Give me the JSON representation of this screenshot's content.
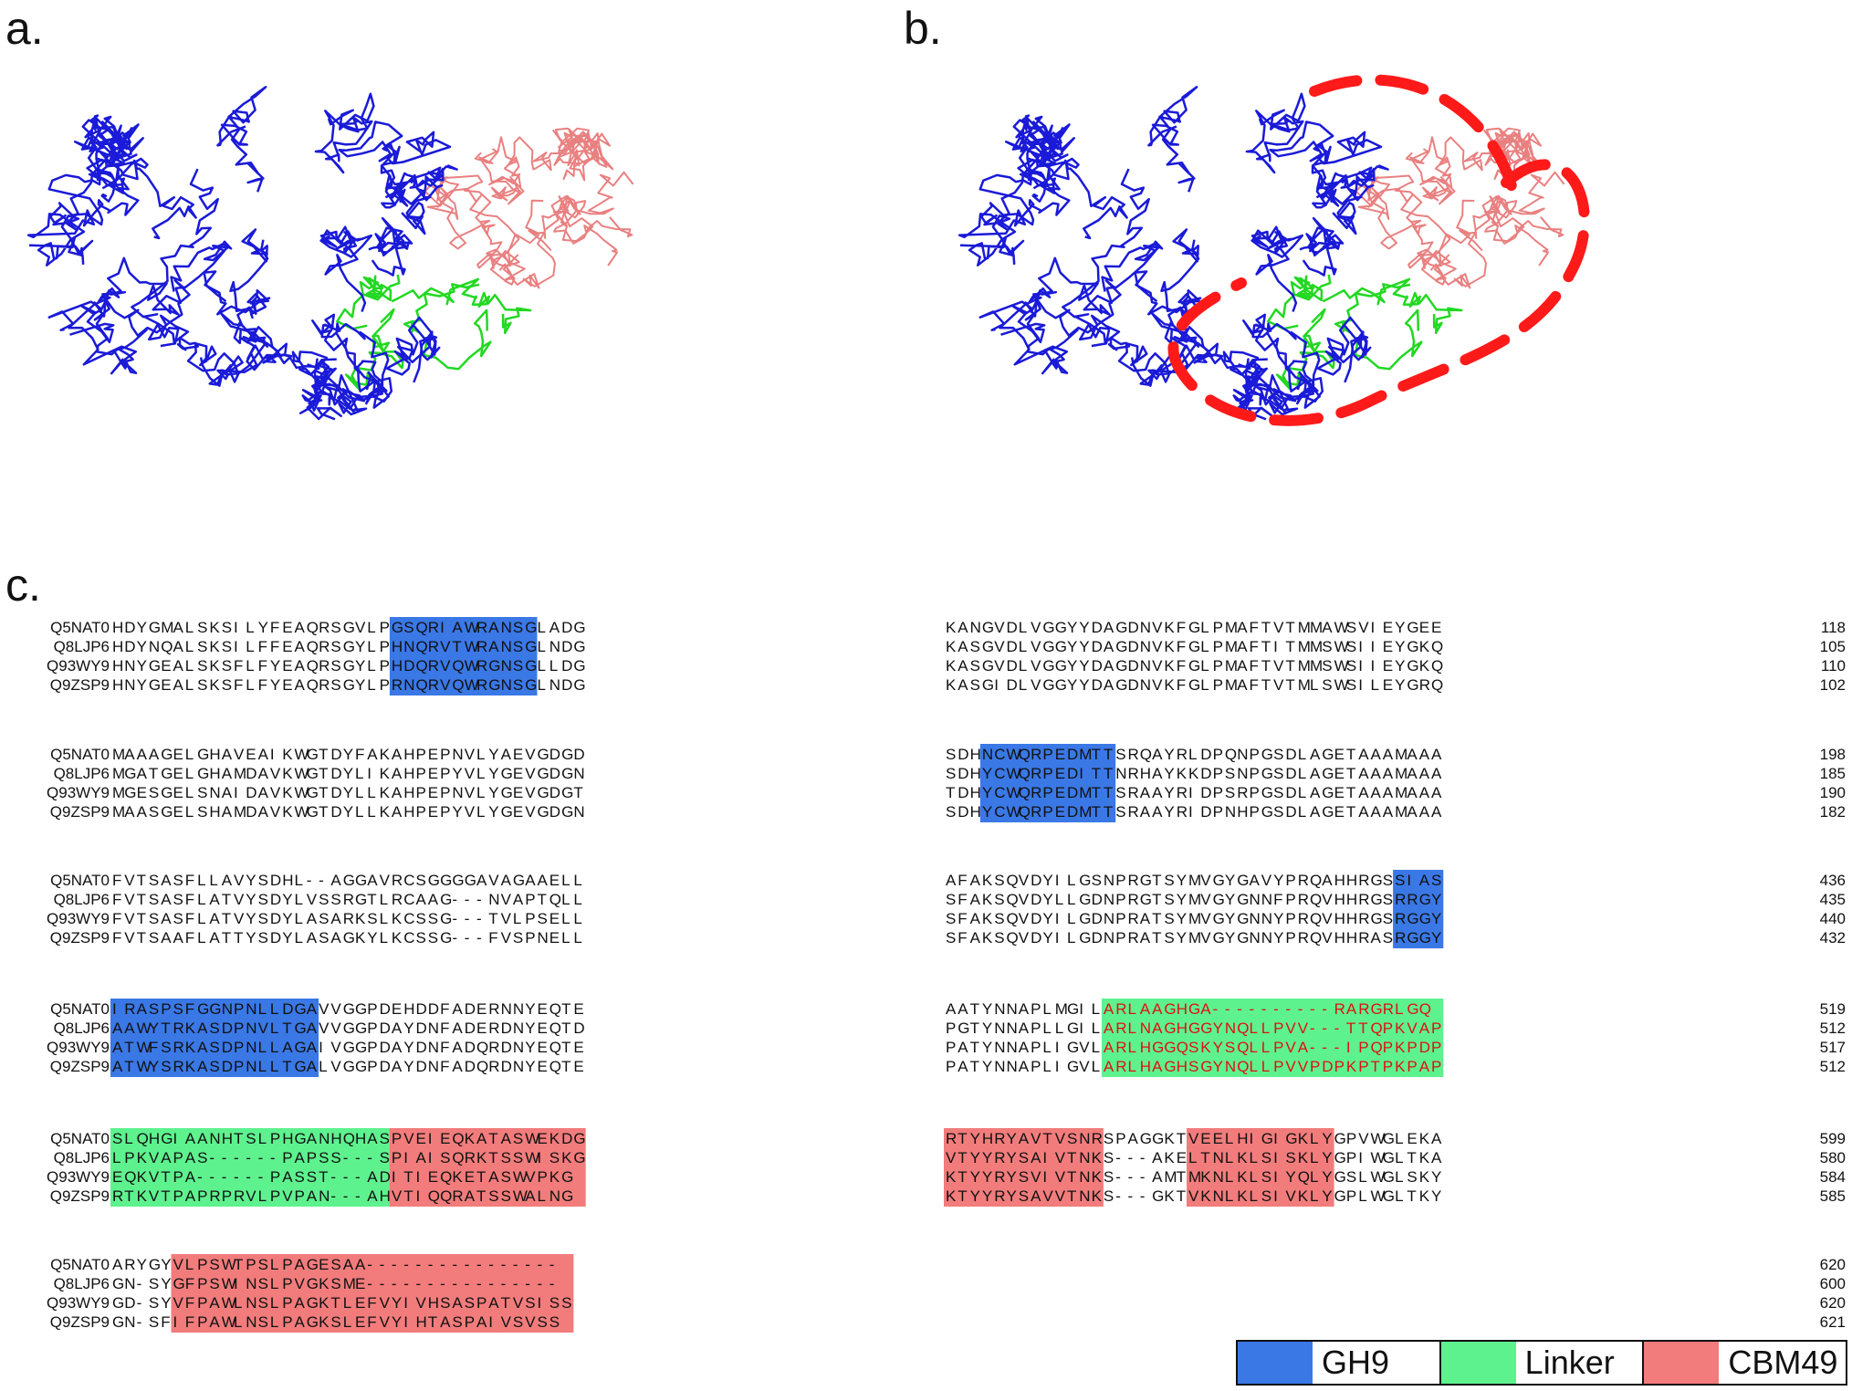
{
  "panels": {
    "a": "a.",
    "b": "b.",
    "c": "c."
  },
  "colors": {
    "gh9": "#3a78e6",
    "linker": "#5ef28f",
    "cbm49": "#f27c7c",
    "cbm49_text": "#e01010",
    "gh9_chain": "#1a1ad8",
    "linker_chain": "#22d822",
    "cbm49_chain": "#e98080",
    "annotation": "#ff1a1a"
  },
  "legend": [
    {
      "label": "GH9",
      "color": "#3a78e6"
    },
    {
      "label": "Linker",
      "color": "#5ef28f"
    },
    {
      "label": "CBM49",
      "color": "#f27c7c"
    }
  ],
  "alignment": {
    "names": [
      "Q5NAT0",
      "Q8LJP6",
      "Q93WY9",
      "Q9ZSP9"
    ],
    "blocks": [
      {
        "rows": [
          {
            "left": "HDYGMALSKSILYFEAQRSGVLPGSQRIAWRANSGLADG",
            "right": "KANGVDLVGGYYDAGDNVKFGLPMAFTVTMMAWSVIEYGEE",
            "num": "118"
          },
          {
            "left": "HDYNQALSKSILFFEAQRSGYLPHNQRVTWRANSGLNDG",
            "right": "KASGVDLVGGYYDAGDNVKFGLPMAFTITMMSWSIIEYGKQ",
            "num": "105"
          },
          {
            "left": "HNYGEALSKSFLFYEAQRSGYLPHDQRVQWRGNSGLLDG",
            "right": "KASGVDLVGGYYDAGDNVKFGLPMAFTVTMMSWSIIEYGKQ",
            "num": "110"
          },
          {
            "left": "HNYGEALSKSFLFYEAQRSGYLPRNQRVQWRGNSGLNDG",
            "right": "KASGIDLVGGYYDAGDNVKFGLPMAFTVTMLSWSILEYGRQ",
            "num": "102"
          }
        ],
        "hl": [
          {
            "side": "left",
            "s": 23,
            "e": 34,
            "c": "gh9"
          }
        ]
      },
      {
        "rows": [
          {
            "left": "MAAAGELGHAVEAIKWGTDYFAKAHPEPNVLYAEVGDGD",
            "right": "SDHNCWQRPEDMTTSRQAYRLDPQNPGSDLAGETAAAMAAA",
            "num": "198"
          },
          {
            "left": "MGATGELGHAMDAVKWGTDYLIKAHPEPYVLYGEVGDGN",
            "right": "SDHYCWQRPEDITTNRHAYKKDPSNPGSDLAGETAAAMAAA",
            "num": "185"
          },
          {
            "left": "MGESGELSNAIDAVKWGTDYLLKAHPEPNVLYGEVGDGT",
            "right": "TDHYCWQRPEDMTTSRAAYRIDPSRPGSDLAGETAAAMAAA",
            "num": "190"
          },
          {
            "left": "MAASGELSHAMDAVKWGTDYLLKAHPEPYVLYGEVGDGN",
            "right": "SDHYCWQRPEDMTTSRAAYRIDPNHPGSDLAGETAAAMAAA",
            "num": "182"
          }
        ],
        "hl": [
          {
            "side": "right",
            "s": 3,
            "e": 13,
            "c": "gh9"
          }
        ]
      },
      {
        "rows": [
          {
            "left": "FVTSASFLLAVYSDHL--AGGAVRCSGGGGAVAGAAELL",
            "right": "AFAKSQVDYILGSNPRGTSYMVGYGAVYPRQAHHRGSSIAS",
            "num": "436"
          },
          {
            "left": "FVTSASFLATVYSDYLVSSRGTLRCAAG---NVAPTQLL",
            "right": "SFAKSQVDYLLGDNPRGTSYMVGYGNNFPRQVHHRGSRRGY",
            "num": "435"
          },
          {
            "left": "FVTSASFLATVYSDYLASARKSLKCSSG---TVLPSELL",
            "right": "SFAKSQVDYILGDNPRATSYMVGYGNNYPRQVHHRGSRGGY",
            "num": "440"
          },
          {
            "left": "FVTSAAFLATTYSDYLASAGKYLKCSSG---FVSPNELL",
            "right": "SFAKSQVDYILGDNPRATSYMVGYGNNYPRQVHHRASRGGY",
            "num": "432"
          }
        ],
        "hl": [
          {
            "side": "right",
            "s": 37,
            "e": 40,
            "c": "gh9"
          }
        ]
      },
      {
        "rows": [
          {
            "left": "IRASPSFGGNPNLLDGAVVGGPDEHDDFADERNNYEQTE",
            "right": "AATYNNAPLMGILARLAAGHGA----------RARGRLGQ",
            "num": "519"
          },
          {
            "left": "AAWYTRKASDPNVLTGAVVGGPDAYDNFADERDNYEQTD",
            "right": "PGTYNNAPLLGILARLNAGHGGYNQLLPVV---TTQPKVAP",
            "num": "512"
          },
          {
            "left": "ATWFSRKASDPNLLAGAIVGGPDAYDNFADQRDNYEQTE",
            "right": "PATYNNAPLIGVLARLHGGQSKYSQLLPVA---IPQPKPDP",
            "num": "517"
          },
          {
            "left": "ATWYSRKASDPNLLTGALVGGPDAYDNFADQRDNYEQTE",
            "right": "PATYNNAPLIGVLARLHAGHSGYNQLLPVVPDPKPTPKPAP",
            "num": "512"
          }
        ],
        "hl": [
          {
            "side": "left",
            "s": 0,
            "e": 16,
            "c": "gh9"
          },
          {
            "side": "right",
            "s": 13,
            "e": 40,
            "c": "linker",
            "red": true
          }
        ]
      },
      {
        "rows": [
          {
            "left": "SLQHGIAANHTSLPHGANHQHASPVEIEQKATASWEKDG",
            "right": "RTYHRYAVTVSNRSPAGGKTVEELHIGIGKLYGPVWGLEKA",
            "num": "599"
          },
          {
            "left": "LPKVAPAS------PAPSS---SPIAISQRKTSSWISKG",
            "right": "VTYYRYSAIVTNKS---AKELTNLKLSISKLYGPIWGLTKA",
            "num": "580"
          },
          {
            "left": "EQKVTPA------PASST---ADITIEQKETASWVPKG",
            "right": "KTYYRYSVIVTNKS---AMTMKNLKLSIYQLYGSLWGLSKY",
            "num": "584"
          },
          {
            "left": "RTKVTPAPRPRVLPVPAN---AHVTIQQRATSSWALNG",
            "right": "KTYYRYSAVVTNKS---GKTVKNLKLSIVKLYGPLWGLTKY",
            "num": "585"
          }
        ],
        "hl": [
          {
            "side": "left",
            "s": 0,
            "e": 22,
            "c": "linker"
          },
          {
            "side": "left",
            "s": 23,
            "e": 38,
            "c": "cbm49"
          },
          {
            "side": "right",
            "s": 0,
            "e": 12,
            "c": "cbm49"
          },
          {
            "side": "right",
            "s": 20,
            "e": 31,
            "c": "cbm49"
          }
        ]
      },
      {
        "rows": [
          {
            "left": "ARYGYVLPSWTPSLPAGESAA----------------",
            "right": "",
            "num": "620"
          },
          {
            "left": "GN-SYGFPSWINSLPVGKSME----------------",
            "right": "",
            "num": "600"
          },
          {
            "left": "GD-SYVFPAWLNSLPAGKTLEFVYIVHSASPATVSISS",
            "right": "",
            "num": "620"
          },
          {
            "left": "GN-SFIFPAWLNSLPAGKSLEFVYIHTASPAIVSVSS",
            "right": "",
            "num": "621"
          }
        ],
        "hl": [
          {
            "side": "left",
            "s": 5,
            "e": 37,
            "c": "cbm49"
          }
        ]
      }
    ]
  }
}
